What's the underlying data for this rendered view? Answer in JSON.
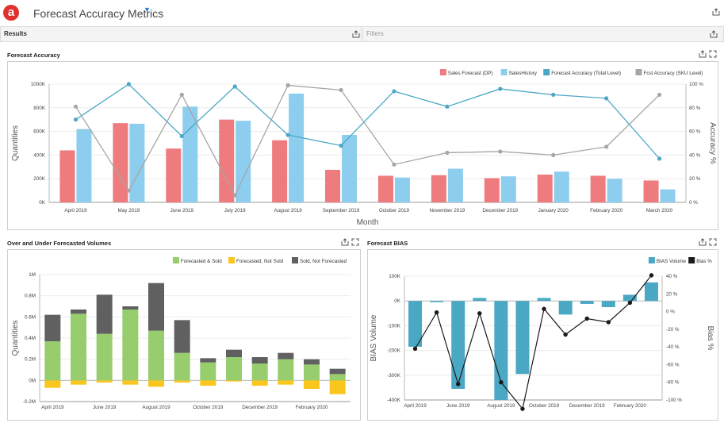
{
  "app": {
    "logo_letter": "a",
    "title": "Forecast Accuracy Metrics"
  },
  "strips": {
    "results": "Results",
    "filters": "Filters"
  },
  "chart_data": [
    {
      "id": "forecast-accuracy",
      "type": "bar",
      "title": "Forecast Accuracy",
      "xlabel": "Month",
      "ylabel": "Quantities",
      "y2label": "Accuracy %",
      "ylim": [
        0,
        1000000
      ],
      "y2lim": [
        0,
        100
      ],
      "yticks": [
        "0K",
        "200K",
        "400K",
        "600K",
        "800K",
        "1000K"
      ],
      "y2ticks": [
        "0 %",
        "20 %",
        "40 %",
        "60 %",
        "80 %",
        "100 %"
      ],
      "categories": [
        "April 2019",
        "May 2019",
        "June 2019",
        "July 2019",
        "August 2019",
        "September 2019",
        "October 2019",
        "November 2019",
        "December 2019",
        "January 2020",
        "February 2020",
        "March 2020"
      ],
      "series": [
        {
          "name": "Sales Forecast (DP)",
          "kind": "bar",
          "color": "#ee7b7e",
          "values": [
            440000,
            670000,
            455000,
            700000,
            525000,
            275000,
            225000,
            230000,
            205000,
            235000,
            225000,
            185000
          ]
        },
        {
          "name": "SalesHistory",
          "kind": "bar",
          "color": "#8dcdee",
          "values": [
            620000,
            665000,
            810000,
            690000,
            920000,
            570000,
            210000,
            285000,
            220000,
            260000,
            200000,
            110000
          ]
        },
        {
          "name": "Forecast Accuracy (Total Level)",
          "kind": "line",
          "color": "#4ba8c4",
          "values": [
            70,
            100,
            56,
            98,
            57,
            48,
            94,
            81,
            96,
            91,
            88,
            37
          ]
        },
        {
          "name": "Fcst Accuracy (SKU Level)",
          "kind": "line",
          "color": "#a6a6a6",
          "values": [
            81,
            10,
            91,
            6,
            99,
            95,
            32,
            42,
            43,
            40,
            47,
            91
          ]
        }
      ]
    },
    {
      "id": "over-under",
      "type": "bar",
      "title": "Over and Under Forecasted Volumes",
      "ylabel": "Quantities",
      "ylim": [
        -0.2,
        1.0
      ],
      "yticks": [
        "-0.2M",
        "0M",
        "0.2M",
        "0.4M",
        "0.6M",
        "0.8M",
        "1M"
      ],
      "categories": [
        "April 2019",
        "May 2019",
        "June 2019",
        "July 2019",
        "August 2019",
        "September 2019",
        "October 2019",
        "November 2019",
        "December 2019",
        "January 2020",
        "February 2020",
        "March 2020"
      ],
      "xtick_labels": [
        "April 2019",
        "June 2019",
        "August 2019",
        "October 2019",
        "December 2019",
        "February 2020"
      ],
      "series": [
        {
          "name": "Forecasted & Sold",
          "color": "#97cd6d",
          "values": [
            0.37,
            0.63,
            0.44,
            0.67,
            0.47,
            0.26,
            0.17,
            0.22,
            0.16,
            0.2,
            0.15,
            0.06
          ]
        },
        {
          "name": "Forecasted, Not Sold",
          "color": "#f9c61e",
          "values": [
            -0.07,
            -0.04,
            -0.02,
            -0.04,
            -0.06,
            -0.02,
            -0.05,
            -0.01,
            -0.05,
            -0.04,
            -0.08,
            -0.13
          ]
        },
        {
          "name": "Sold, Not Forecasted",
          "color": "#606060",
          "values": [
            0.25,
            0.04,
            0.37,
            0.03,
            0.45,
            0.31,
            0.04,
            0.07,
            0.06,
            0.06,
            0.05,
            0.05
          ]
        }
      ]
    },
    {
      "id": "forecast-bias",
      "type": "bar",
      "title": "Forecast BIAS",
      "ylabel": "BIAS Volume",
      "y2label": "Bias %",
      "ylim": [
        -400000,
        100000
      ],
      "y2lim": [
        -100,
        40
      ],
      "yticks": [
        "-400K",
        "-300K",
        "-200K",
        "-100K",
        "0K",
        "100K"
      ],
      "y2ticks": [
        "-100 %",
        "-80 %",
        "-60 %",
        "-40 %",
        "-20 %",
        "0 %",
        "20 %",
        "40 %"
      ],
      "categories": [
        "April 2019",
        "May 2019",
        "June 2019",
        "July 2019",
        "August 2019",
        "September 2019",
        "October 2019",
        "November 2019",
        "December 2019",
        "January 2020",
        "February 2020",
        "March 2020"
      ],
      "xtick_labels": [
        "April 2019",
        "June 2019",
        "August 2019",
        "October 2019",
        "December 2019",
        "February 2020"
      ],
      "series": [
        {
          "name": "BIAS Volume",
          "kind": "bar",
          "color": "#4ba8c4",
          "values": [
            -185000,
            -5000,
            -355000,
            12000,
            -400000,
            -295000,
            12000,
            -55000,
            -12000,
            -25000,
            25000,
            75000
          ]
        },
        {
          "name": "Bias %",
          "kind": "line",
          "color": "#1a1a1a",
          "values": [
            -42,
            -1,
            -82,
            -2,
            -80,
            -110,
            3,
            -26,
            -8,
            -12,
            10,
            41
          ]
        }
      ]
    }
  ]
}
